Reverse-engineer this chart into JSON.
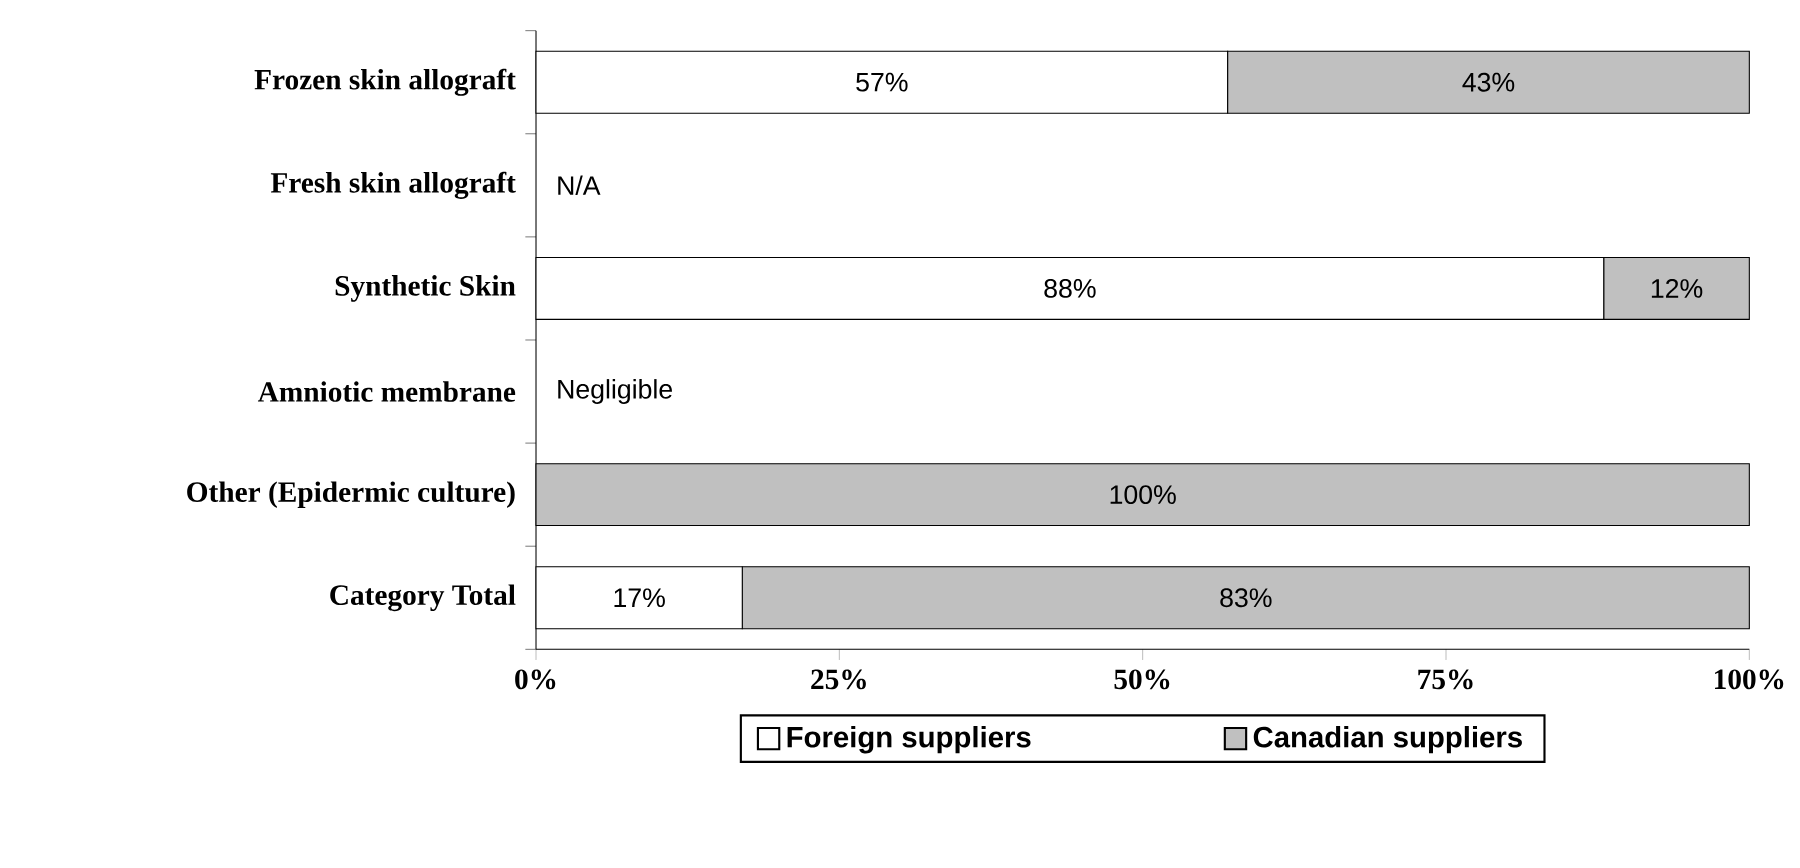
{
  "chart_data": {
    "type": "bar",
    "orientation": "horizontal",
    "stacked": true,
    "categories": [
      "Frozen skin allograft",
      "Fresh skin allograft",
      "Synthetic Skin",
      "Amniotic membrane",
      "Other (Epidermic culture)",
      "Category Total"
    ],
    "series": [
      {
        "name": "Foreign suppliers",
        "color": "#ffffff",
        "values": [
          57,
          null,
          88,
          null,
          0,
          17
        ],
        "value_labels": [
          "57%",
          null,
          "88%",
          null,
          null,
          "17%"
        ]
      },
      {
        "name": "Canadian suppliers",
        "color": "#c0c0c0",
        "values": [
          43,
          null,
          12,
          null,
          100,
          83
        ],
        "value_labels": [
          "43%",
          null,
          "12%",
          null,
          "100%",
          "83%"
        ]
      }
    ],
    "xlim": [
      0,
      100
    ],
    "xticks": [
      {
        "value": 0,
        "label": "0%"
      },
      {
        "value": 25,
        "label": "25%"
      },
      {
        "value": 50,
        "label": "50%"
      },
      {
        "value": 75,
        "label": "75%"
      },
      {
        "value": 100,
        "label": "100%"
      }
    ],
    "legend": "bottom",
    "annotations": [
      "N/A",
      "Negligible"
    ]
  }
}
